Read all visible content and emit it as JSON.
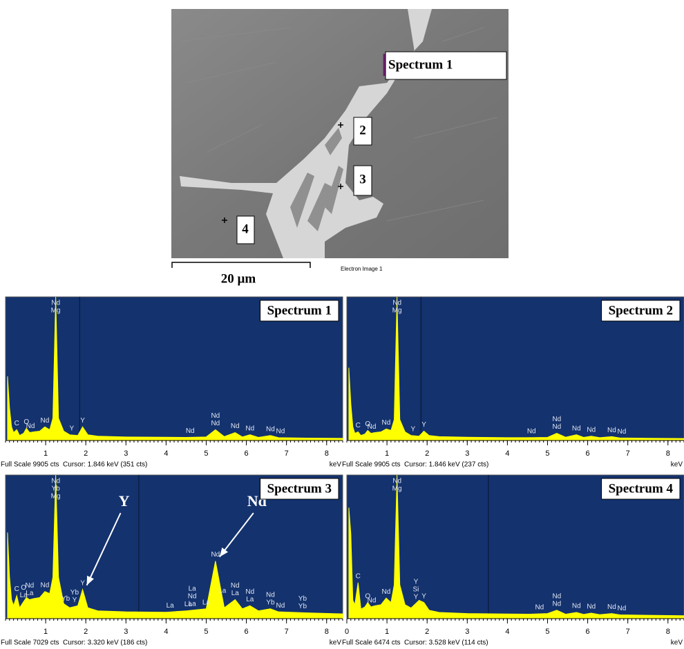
{
  "image": {
    "labels": [
      "Spectrum 1",
      "2",
      "3",
      "4"
    ],
    "scale_bar": "20 µm",
    "caption": "Electron Image 1"
  },
  "chart_data": [
    {
      "type": "line",
      "title": "Spectrum 1",
      "color": "#ffff00",
      "x_label": "keV",
      "footer": "Full Scale 9905 cts  Cursor: 1.846 keV (351 cts)",
      "cursor": 1.846,
      "xlim": [
        0,
        8.4
      ],
      "xticks": [
        1,
        2,
        3,
        4,
        5,
        6,
        7,
        8
      ],
      "ylim": [
        0,
        9905
      ],
      "x": [
        0.05,
        0.1,
        0.15,
        0.2,
        0.28,
        0.35,
        0.45,
        0.52,
        0.6,
        0.7,
        0.85,
        0.98,
        1.1,
        1.18,
        1.25,
        1.32,
        1.45,
        1.6,
        1.8,
        1.92,
        2.05,
        2.3,
        3,
        4,
        4.5,
        5,
        5.23,
        5.45,
        5.72,
        5.9,
        6.09,
        6.3,
        6.6,
        6.8,
        7.5,
        8.4
      ],
      "values": [
        4400,
        2200,
        900,
        500,
        700,
        300,
        450,
        800,
        500,
        550,
        600,
        900,
        700,
        1500,
        9905,
        1500,
        600,
        350,
        300,
        900,
        350,
        250,
        200,
        180,
        170,
        200,
        700,
        220,
        500,
        200,
        350,
        170,
        300,
        150,
        120,
        100
      ],
      "annotations": [
        {
          "text": "C",
          "x": 0.28
        },
        {
          "text": "O",
          "x": 0.52
        },
        {
          "text": "Nd",
          "x": 0.62
        },
        {
          "text": "Nd",
          "x": 0.98
        },
        {
          "text": "Nd",
          "x": 1.25
        },
        {
          "text": "Mg",
          "x": 1.25
        },
        {
          "text": "Y",
          "x": 1.65
        },
        {
          "text": "Y",
          "x": 1.92
        },
        {
          "text": "Nd",
          "x": 4.6
        },
        {
          "text": "Nd",
          "x": 5.23
        },
        {
          "text": "Nd",
          "x": 5.23
        },
        {
          "text": "Nd",
          "x": 5.72
        },
        {
          "text": "Nd",
          "x": 6.09
        },
        {
          "text": "Nd",
          "x": 6.6
        },
        {
          "text": "Nd",
          "x": 6.85
        }
      ]
    },
    {
      "type": "line",
      "title": "Spectrum 2",
      "color": "#ffff00",
      "x_label": "keV",
      "footer": "Full Scale 9905 cts  Cursor: 1.846 keV (237 cts)",
      "cursor": 1.846,
      "xlim": [
        0,
        8.4
      ],
      "xticks": [
        1,
        2,
        3,
        4,
        5,
        6,
        7,
        8
      ],
      "ylim": [
        0,
        9905
      ],
      "x": [
        0.05,
        0.1,
        0.15,
        0.2,
        0.28,
        0.35,
        0.45,
        0.52,
        0.6,
        0.7,
        0.85,
        0.98,
        1.1,
        1.18,
        1.25,
        1.32,
        1.45,
        1.6,
        1.8,
        1.92,
        2.05,
        2.3,
        3,
        4,
        4.5,
        5,
        5.23,
        5.45,
        5.72,
        5.9,
        6.09,
        6.3,
        6.6,
        6.8,
        7.5,
        8.4
      ],
      "values": [
        5000,
        2500,
        900,
        450,
        550,
        300,
        400,
        650,
        450,
        500,
        550,
        750,
        650,
        1400,
        9905,
        1400,
        550,
        300,
        250,
        600,
        300,
        220,
        180,
        150,
        150,
        170,
        450,
        180,
        350,
        170,
        250,
        150,
        220,
        130,
        110,
        90
      ],
      "annotations": [
        {
          "text": "C",
          "x": 0.28
        },
        {
          "text": "O",
          "x": 0.52
        },
        {
          "text": "Nd",
          "x": 0.62
        },
        {
          "text": "Nd",
          "x": 0.98
        },
        {
          "text": "Nd",
          "x": 1.25
        },
        {
          "text": "Mg",
          "x": 1.25
        },
        {
          "text": "Y",
          "x": 1.65
        },
        {
          "text": "Y",
          "x": 1.92
        },
        {
          "text": "Nd",
          "x": 4.6
        },
        {
          "text": "Nd",
          "x": 5.23
        },
        {
          "text": "Nd",
          "x": 5.23
        },
        {
          "text": "Nd",
          "x": 5.72
        },
        {
          "text": "Nd",
          "x": 6.09
        },
        {
          "text": "Nd",
          "x": 6.6
        },
        {
          "text": "Nd",
          "x": 6.85
        }
      ]
    },
    {
      "type": "line",
      "title": "Spectrum 3",
      "color": "#ffff00",
      "x_label": "keV",
      "footer": "Full Scale 7029 cts  Cursor: 3.320 keV (186 cts)",
      "cursor": 3.32,
      "xlim": [
        0,
        8.4
      ],
      "xticks": [
        1,
        2,
        3,
        4,
        5,
        6,
        7,
        8
      ],
      "ylim": [
        0,
        7029
      ],
      "x": [
        0.05,
        0.1,
        0.15,
        0.2,
        0.28,
        0.35,
        0.45,
        0.52,
        0.6,
        0.7,
        0.85,
        0.98,
        1.1,
        1.18,
        1.25,
        1.32,
        1.45,
        1.6,
        1.8,
        1.92,
        2.05,
        2.3,
        3,
        4,
        4.5,
        5,
        5.23,
        5.45,
        5.72,
        5.9,
        6.09,
        6.3,
        6.6,
        6.8,
        7.5,
        8.4
      ],
      "values": [
        4200,
        2000,
        900,
        600,
        1100,
        500,
        800,
        1000,
        900,
        950,
        1000,
        1300,
        1200,
        2000,
        7029,
        2000,
        700,
        500,
        600,
        1400,
        500,
        350,
        300,
        280,
        350,
        450,
        2800,
        500,
        900,
        450,
        600,
        350,
        450,
        300,
        250,
        200
      ],
      "annotations": [
        {
          "text": "C",
          "x": 0.28
        },
        {
          "text": "O",
          "x": 0.45
        },
        {
          "text": "La",
          "x": 0.45
        },
        {
          "text": "Nd",
          "x": 0.6
        },
        {
          "text": "La",
          "x": 0.6
        },
        {
          "text": "Nd",
          "x": 0.98
        },
        {
          "text": "Nd",
          "x": 1.25
        },
        {
          "text": "Yb",
          "x": 1.25
        },
        {
          "text": "Mg",
          "x": 1.25
        },
        {
          "text": "Yb",
          "x": 1.5
        },
        {
          "text": "Yb",
          "x": 1.72
        },
        {
          "text": "Y",
          "x": 1.72
        },
        {
          "text": "Y",
          "x": 1.92
        },
        {
          "text": "La",
          "x": 4.1
        },
        {
          "text": "La",
          "x": 4.55
        },
        {
          "text": "La",
          "x": 4.65
        },
        {
          "text": "Nd",
          "x": 4.65
        },
        {
          "text": "La",
          "x": 4.65
        },
        {
          "text": "La",
          "x": 5.0
        },
        {
          "text": "Nd",
          "x": 5.23
        },
        {
          "text": "La",
          "x": 5.4
        },
        {
          "text": "Nd",
          "x": 5.72
        },
        {
          "text": "La",
          "x": 5.72
        },
        {
          "text": "Nd",
          "x": 6.09
        },
        {
          "text": "La",
          "x": 6.09
        },
        {
          "text": "Nd",
          "x": 6.6
        },
        {
          "text": "Yb",
          "x": 6.6
        },
        {
          "text": "Nd",
          "x": 6.85
        },
        {
          "text": "Yb",
          "x": 7.4
        },
        {
          "text": "Yb",
          "x": 7.4
        }
      ],
      "callouts": [
        {
          "text": "Y",
          "x": 1.92
        },
        {
          "text": "Nd",
          "x": 5.23
        }
      ]
    },
    {
      "type": "line",
      "title": "Spectrum 4",
      "color": "#ffff00",
      "x_label": "keV",
      "footer": "Full Scale 6474 cts  Cursor: 3.528 keV (114 cts)",
      "cursor": 3.528,
      "xlim": [
        0,
        8.4
      ],
      "xticks": [
        0,
        1,
        2,
        3,
        4,
        5,
        6,
        7,
        8
      ],
      "ylim": [
        0,
        6474
      ],
      "x": [
        0.05,
        0.1,
        0.15,
        0.2,
        0.28,
        0.35,
        0.45,
        0.52,
        0.6,
        0.7,
        0.85,
        0.98,
        1.1,
        1.18,
        1.25,
        1.32,
        1.45,
        1.6,
        1.8,
        1.92,
        2.05,
        2.3,
        3,
        4,
        4.5,
        5,
        5.23,
        5.45,
        5.72,
        5.9,
        6.09,
        6.3,
        6.6,
        6.8,
        7.5,
        8.4
      ],
      "values": [
        5000,
        3800,
        800,
        600,
        1600,
        400,
        500,
        700,
        500,
        550,
        600,
        900,
        700,
        1500,
        6474,
        1500,
        600,
        450,
        800,
        700,
        350,
        250,
        200,
        180,
        170,
        200,
        350,
        170,
        250,
        160,
        220,
        150,
        200,
        140,
        120,
        100
      ],
      "annotations": [
        {
          "text": "C",
          "x": 0.28
        },
        {
          "text": "O",
          "x": 0.52
        },
        {
          "text": "Nd",
          "x": 0.62
        },
        {
          "text": "Nd",
          "x": 0.98
        },
        {
          "text": "Nd",
          "x": 1.25
        },
        {
          "text": "Mg",
          "x": 1.25
        },
        {
          "text": "Y",
          "x": 1.72
        },
        {
          "text": "Si",
          "x": 1.72
        },
        {
          "text": "Y",
          "x": 1.72
        },
        {
          "text": "Y",
          "x": 1.92
        },
        {
          "text": "Nd",
          "x": 4.8
        },
        {
          "text": "Nd",
          "x": 5.23
        },
        {
          "text": "Nd",
          "x": 5.23
        },
        {
          "text": "Nd",
          "x": 5.72
        },
        {
          "text": "Nd",
          "x": 6.09
        },
        {
          "text": "Nd",
          "x": 6.6
        },
        {
          "text": "Nd",
          "x": 6.85
        }
      ]
    }
  ]
}
